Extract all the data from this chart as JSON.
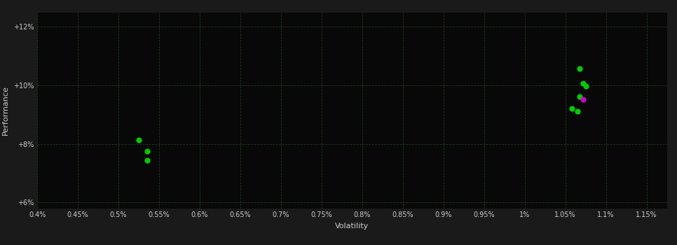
{
  "background_color": "#1a1a1a",
  "plot_bg_color": "#080808",
  "grid_color": "#1e3a1e",
  "text_color": "#cccccc",
  "xlabel": "Volatility",
  "ylabel": "Performance",
  "xlim": [
    0.004,
    0.01175
  ],
  "ylim": [
    0.058,
    0.125
  ],
  "xticks": [
    0.004,
    0.0045,
    0.005,
    0.0055,
    0.006,
    0.0065,
    0.007,
    0.0075,
    0.008,
    0.0085,
    0.009,
    0.0095,
    0.01,
    0.0105,
    0.011,
    0.0115
  ],
  "xtick_labels": [
    "0.4%",
    "0.45%",
    "0.5%",
    "0.55%",
    "0.6%",
    "0.65%",
    "0.7%",
    "0.75%",
    "0.8%",
    "0.85%",
    "0.9%",
    "0.95%",
    "1%",
    "1.05%",
    "1.1%",
    "1.15%"
  ],
  "yticks": [
    0.06,
    0.08,
    0.1,
    0.12
  ],
  "ytick_labels": [
    "+6%",
    "+8%",
    "+10%",
    "+12%"
  ],
  "green_points": [
    [
      0.00525,
      0.0813
    ],
    [
      0.00535,
      0.0775
    ],
    [
      0.00535,
      0.0745
    ],
    [
      0.01068,
      0.1058
    ],
    [
      0.01072,
      0.1008
    ],
    [
      0.01075,
      0.0998
    ],
    [
      0.01068,
      0.0962
    ],
    [
      0.01058,
      0.0922
    ],
    [
      0.01065,
      0.0912
    ]
  ],
  "magenta_points": [
    [
      0.01072,
      0.0952
    ]
  ],
  "point_size": 35,
  "font_size_ticks": 7,
  "font_size_label": 8
}
